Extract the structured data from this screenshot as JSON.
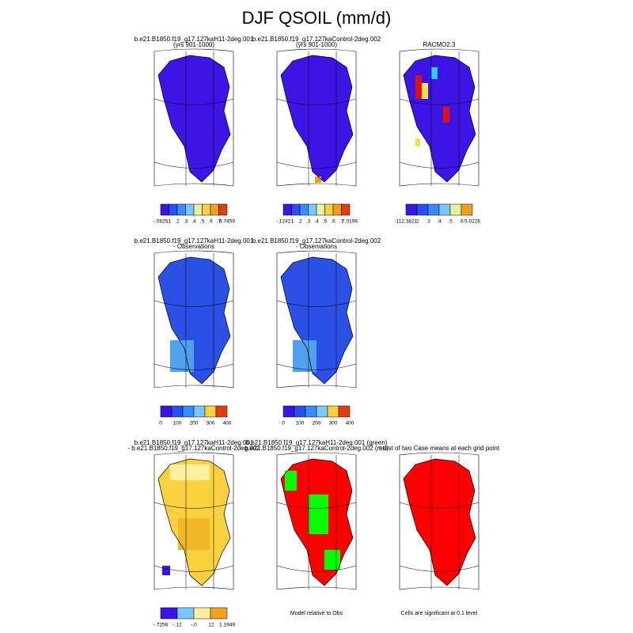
{
  "title": "DJF QSOIL (mm/d)",
  "panels": [
    {
      "title": [
        "b.e21.B1850.f19_g17.127kaH11-2deg.001",
        "(yrs 901-1000)"
      ],
      "colorbar_labels": [
        "-.0825",
        ".1",
        ".2",
        ".3",
        ".4",
        ".5",
        ".6",
        ".7",
        "6.7459"
      ]
    },
    {
      "title": [
        "b.e21.B1850.f19_g17.127kaControl-2deg.002",
        "(yrs 901-1000)"
      ],
      "colorbar_labels": [
        "-.1242",
        ".1",
        ".2",
        ".3",
        ".4",
        ".5",
        ".6",
        ".7",
        "7.0196"
      ]
    },
    {
      "title": [
        "RACMO2.3"
      ],
      "colorbar_labels": [
        "-112.3821",
        ".2",
        ".3",
        ".4",
        ".5",
        ".6",
        "5.0228"
      ]
    },
    {
      "title": [
        "b.e21.B1850.f19_g17.127kaH11-2deg.001",
        "- Observations"
      ],
      "colorbar_labels": [
        "0",
        "100",
        "200",
        "300",
        "400"
      ]
    },
    {
      "title": [
        "b.e21.B1850.f19_g17.127kaControl-2deg.002",
        "- Observations"
      ],
      "colorbar_labels": [
        "0",
        "100",
        "200",
        "300",
        "400"
      ]
    },
    {
      "title": [
        "b.e21.B1850.f19_g17.127kaH11-2deg.001",
        "- b.e21.B1850.f19_g17.127kaControl-2deg.002"
      ],
      "colorbar_labels": [
        "-.7256",
        "-.12",
        "-.0",
        ".12",
        "1.1949"
      ]
    },
    {
      "title": [
        "b.e21.B1850.f19_g17.127kaH11-2deg.001 (green)",
        "b.e21.B1850.f19_g17.127kaControl-2deg.002 (red)"
      ],
      "footer": "Model relative to Obs"
    },
    {
      "title": [
        "t-test of two Case means at each grid point"
      ],
      "footer": "Cells are significant at 0.1 level"
    }
  ]
}
